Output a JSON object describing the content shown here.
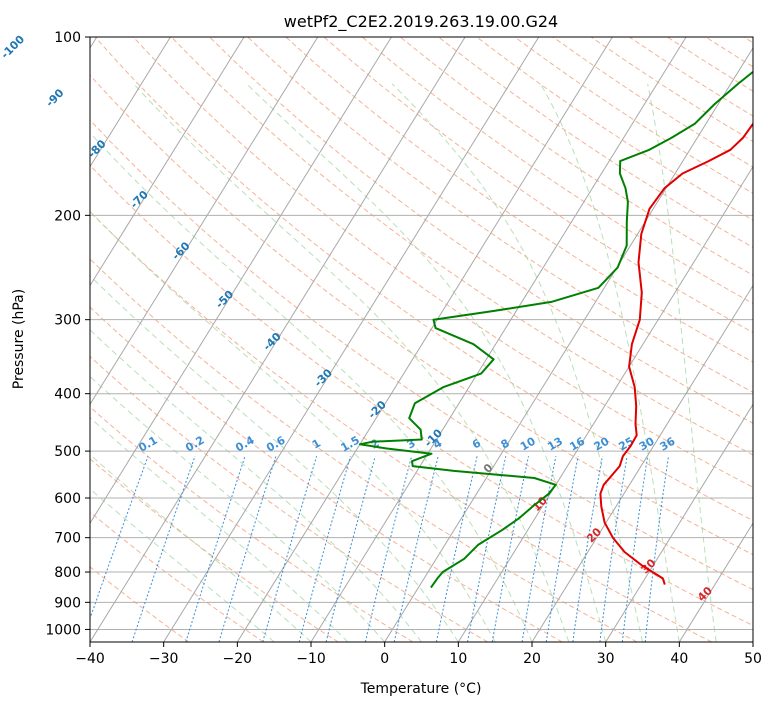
{
  "chart_data": {
    "type": "line",
    "title": "wetPf2_C2E2.2019.263.19.00.G24",
    "xlabel": "Temperature (°C)",
    "ylabel": "Pressure (hPa)",
    "xlim": [
      -40,
      50
    ],
    "ylim": [
      1050,
      100
    ],
    "y_scale": "log",
    "x_ticks": [
      -40,
      -30,
      -20,
      -10,
      0,
      10,
      20,
      30,
      40,
      50
    ],
    "y_ticks": [
      100,
      200,
      300,
      400,
      500,
      600,
      700,
      800,
      900,
      1000
    ],
    "grid": true,
    "background_lines": {
      "isotherms_skewed": {
        "color": "#999999",
        "style": "solid"
      },
      "dry_adiabats": {
        "color": "#f4a582",
        "style": "dashed"
      },
      "moist_adiabats": {
        "color": "#a6d8a6",
        "style": "dashed"
      },
      "mixing_ratio_lines": {
        "color": "#3b8fd6",
        "style": "dotted"
      },
      "theta_e_curves": {
        "color": "#d8c8a8",
        "style": "dashed"
      }
    },
    "series": [
      {
        "color": "#e00000",
        "points": [
          {
            "p": 840,
            "t": 33.2
          },
          {
            "p": 820,
            "t": 32.4
          },
          {
            "p": 780,
            "t": 28.5
          },
          {
            "p": 740,
            "t": 25.0
          },
          {
            "p": 700,
            "t": 22.2
          },
          {
            "p": 660,
            "t": 19.8
          },
          {
            "p": 620,
            "t": 18.0
          },
          {
            "p": 590,
            "t": 16.8
          },
          {
            "p": 570,
            "t": 16.5
          },
          {
            "p": 550,
            "t": 16.8
          },
          {
            "p": 530,
            "t": 17.1
          },
          {
            "p": 510,
            "t": 16.7
          },
          {
            "p": 490,
            "t": 16.9
          },
          {
            "p": 470,
            "t": 16.8
          },
          {
            "p": 450,
            "t": 15.7
          },
          {
            "p": 420,
            "t": 14.3
          },
          {
            "p": 390,
            "t": 12.5
          },
          {
            "p": 360,
            "t": 10.0
          },
          {
            "p": 330,
            "t": 8.5
          },
          {
            "p": 300,
            "t": 7.5
          },
          {
            "p": 270,
            "t": 5.5
          },
          {
            "p": 240,
            "t": 2.5
          },
          {
            "p": 215,
            "t": 0.5
          },
          {
            "p": 195,
            "t": -0.5
          },
          {
            "p": 180,
            "t": -0.2
          },
          {
            "p": 170,
            "t": 1.0
          },
          {
            "p": 162,
            "t": 3.5
          },
          {
            "p": 155,
            "t": 5.5
          },
          {
            "p": 148,
            "t": 6.2
          },
          {
            "p": 140,
            "t": 6.4
          },
          {
            "p": 130,
            "t": 6.6
          },
          {
            "p": 120,
            "t": 8.0
          },
          {
            "p": 112,
            "t": 9.3
          },
          {
            "p": 105,
            "t": 9.5
          },
          {
            "p": 100,
            "t": 9.6
          }
        ]
      },
      {
        "color": "#008000",
        "points": [
          {
            "p": 850,
            "t": 1.7
          },
          {
            "p": 820,
            "t": 1.8
          },
          {
            "p": 800,
            "t": 2.0
          },
          {
            "p": 760,
            "t": 3.8
          },
          {
            "p": 720,
            "t": 4.5
          },
          {
            "p": 680,
            "t": 6.5
          },
          {
            "p": 650,
            "t": 7.8
          },
          {
            "p": 620,
            "t": 8.7
          },
          {
            "p": 590,
            "t": 9.8
          },
          {
            "p": 570,
            "t": 10.0
          },
          {
            "p": 555,
            "t": 6.5
          },
          {
            "p": 540,
            "t": -5.0
          },
          {
            "p": 530,
            "t": -11.0
          },
          {
            "p": 520,
            "t": -11.5
          },
          {
            "p": 505,
            "t": -9.5
          },
          {
            "p": 495,
            "t": -16.0
          },
          {
            "p": 487,
            "t": -20.0
          },
          {
            "p": 482,
            "t": -18.5
          },
          {
            "p": 478,
            "t": -12.0
          },
          {
            "p": 460,
            "t": -13.0
          },
          {
            "p": 440,
            "t": -15.5
          },
          {
            "p": 415,
            "t": -16.0
          },
          {
            "p": 390,
            "t": -13.5
          },
          {
            "p": 370,
            "t": -9.5
          },
          {
            "p": 350,
            "t": -9.0
          },
          {
            "p": 330,
            "t": -13.0
          },
          {
            "p": 310,
            "t": -19.5
          },
          {
            "p": 300,
            "t": -20.5
          },
          {
            "p": 290,
            "t": -13.0
          },
          {
            "p": 280,
            "t": -6.0
          },
          {
            "p": 265,
            "t": -0.8
          },
          {
            "p": 245,
            "t": 0.1
          },
          {
            "p": 225,
            "t": -0.5
          },
          {
            "p": 205,
            "t": -2.5
          },
          {
            "p": 190,
            "t": -4.0
          },
          {
            "p": 180,
            "t": -5.5
          },
          {
            "p": 170,
            "t": -7.5
          },
          {
            "p": 162,
            "t": -8.5
          },
          {
            "p": 155,
            "t": -5.5
          },
          {
            "p": 148,
            "t": -3.5
          },
          {
            "p": 140,
            "t": -1.5
          },
          {
            "p": 130,
            "t": -0.5
          },
          {
            "p": 120,
            "t": 1.0
          },
          {
            "p": 112,
            "t": 2.5
          },
          {
            "p": 106,
            "t": 4.0
          },
          {
            "p": 100,
            "t": 5.0
          }
        ]
      }
    ],
    "isotherm_labels": [
      "-100",
      "-90",
      "-80",
      "-70",
      "-60",
      "-50",
      "-40",
      "-30",
      "-20",
      "-10",
      "0",
      "10",
      "20",
      "30",
      "40"
    ],
    "isotherm_label_values": [
      -100,
      -90,
      -80,
      -70,
      -60,
      -50,
      -40,
      -30,
      -20,
      -10,
      0,
      10,
      20,
      30,
      40
    ],
    "mixing_ratio_labels": [
      "0.1",
      "0.2",
      "0.4",
      "0.6",
      "1",
      "1.5",
      "2",
      "3",
      "4",
      "6",
      "8",
      "10",
      "13",
      "16",
      "20",
      "25",
      "30",
      "36"
    ],
    "mixing_ratio_values": [
      0.1,
      0.2,
      0.4,
      0.6,
      1,
      1.5,
      2,
      3,
      4,
      6,
      8,
      10,
      13,
      16,
      20,
      25,
      30,
      36
    ]
  }
}
